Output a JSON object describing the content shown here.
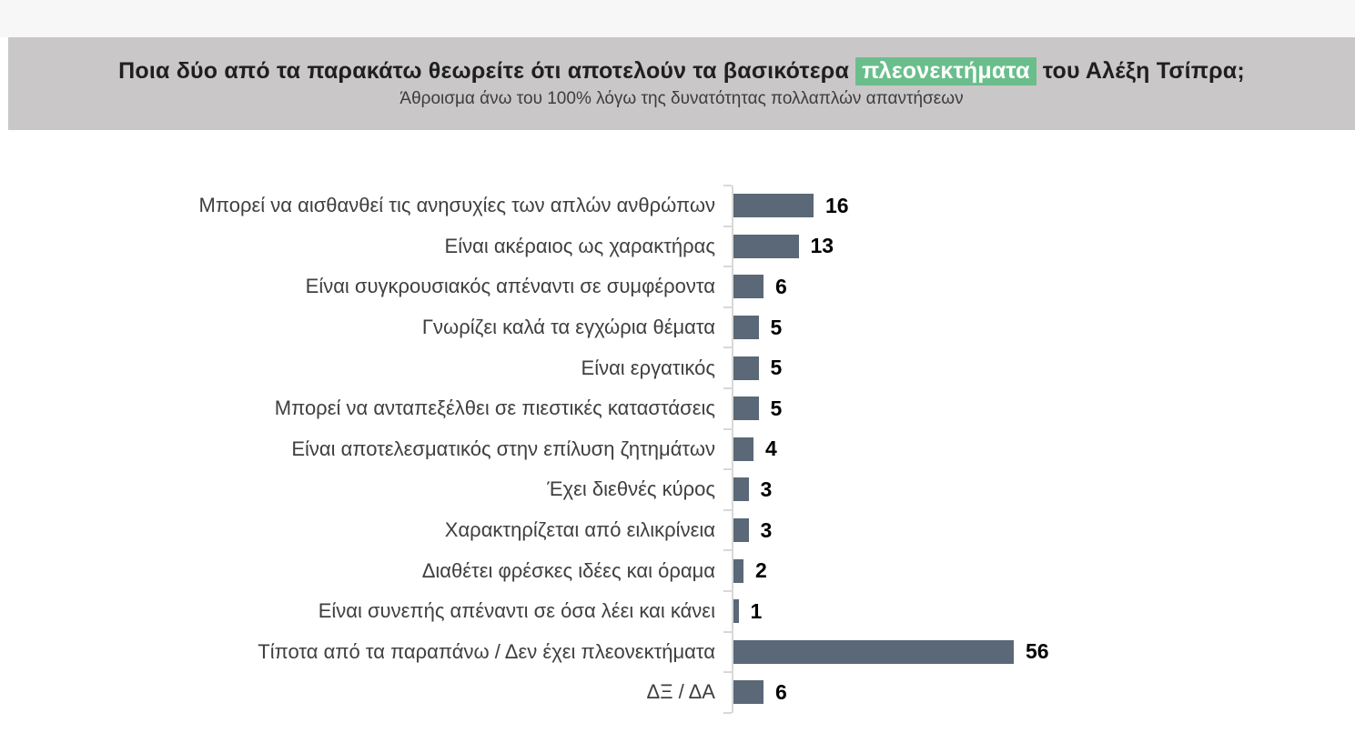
{
  "header": {
    "title_prefix": "Ποια δύο από τα παρακάτω θεωρείτε ότι αποτελούν τα βασικότερα ",
    "title_highlight": "πλεονεκτήματα",
    "title_suffix": " του Αλέξη Τσίπρα;",
    "subtitle": "Άθροισμα άνω του 100% λόγω της δυνατότητας πολλαπλών απαντήσεων",
    "highlight_bg_color": "#6abe8c",
    "band_bg_color": "#c9c7c8"
  },
  "chart_data": {
    "type": "bar",
    "orientation": "horizontal",
    "title": "Ποια δύο από τα παρακάτω θεωρείτε ότι αποτελούν τα βασικότερα πλεονεκτήματα του Αλέξη Τσίπρα;",
    "subtitle": "Άθροισμα άνω του 100% λόγω της δυνατότητας πολλαπλών απαντήσεων",
    "categories": [
      "Μπορεί να αισθανθεί τις ανησυχίες των απλών ανθρώπων",
      "Είναι ακέραιος ως χαρακτήρας",
      "Είναι συγκρουσιακός απέναντι σε συμφέροντα",
      "Γνωρίζει καλά τα εγχώρια θέματα",
      "Είναι εργατικός",
      "Μπορεί να ανταπεξέλθει σε πιεστικές καταστάσεις",
      "Είναι αποτελεσματικός στην επίλυση ζητημάτων",
      "Έχει διεθνές κύρος",
      "Χαρακτηρίζεται από ειλικρίνεια",
      "Διαθέτει φρέσκες ιδέες και όραμα",
      "Είναι συνεπής απέναντι σε όσα λέει και κάνει",
      "Τίποτα από τα παραπάνω / Δεν έχει πλεονεκτήματα",
      "ΔΞ / ΔΑ"
    ],
    "values": [
      16,
      13,
      6,
      5,
      5,
      5,
      4,
      3,
      3,
      2,
      1,
      56,
      6
    ],
    "xlim": [
      0,
      60
    ],
    "xlabel": "",
    "ylabel": "",
    "grid": false,
    "legend": false,
    "data_labels": true,
    "bar_color": "#5a6877",
    "value_label_color": "#000000",
    "axis_color": "#d8d8d8"
  }
}
